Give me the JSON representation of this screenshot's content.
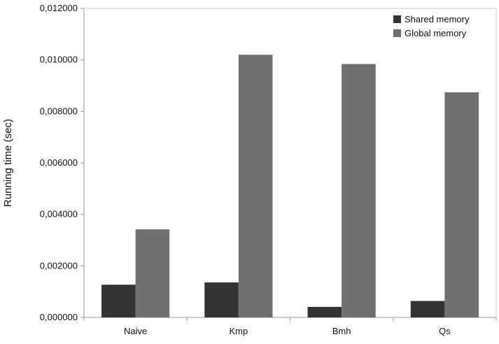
{
  "chart_data": {
    "type": "bar",
    "title": "",
    "xlabel": "",
    "ylabel": "Running time (sec)",
    "categories": [
      "Naive",
      "Kmp",
      "Bmh",
      "Qs"
    ],
    "series": [
      {
        "name": "Shared memory",
        "values": [
          0.00127,
          0.00136,
          0.00041,
          0.00064
        ],
        "color": "#333333"
      },
      {
        "name": "Global memory",
        "values": [
          0.00342,
          0.0102,
          0.00984,
          0.00874
        ],
        "color": "#707070"
      }
    ],
    "ylim": [
      0,
      0.012
    ],
    "yticks": [
      0,
      0.002,
      0.004,
      0.006,
      0.008,
      0.01,
      0.012
    ],
    "ytick_labels": [
      "0,000000",
      "0,002000",
      "0,004000",
      "0,006000",
      "0,008000",
      "0,010000",
      "0,012000"
    ],
    "grid": false,
    "legend_position": "top-right"
  }
}
